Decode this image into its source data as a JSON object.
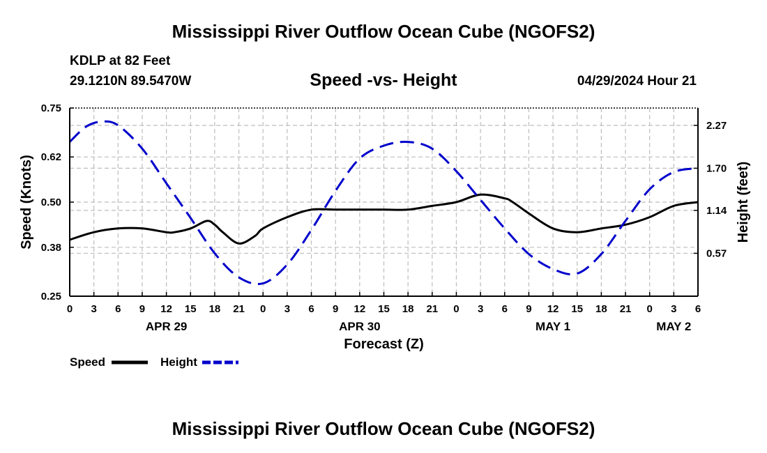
{
  "page": {
    "title": "Mississippi River Outflow Ocean Cube (NGOFS2)",
    "station": "KDLP at 82 Feet",
    "coords": "29.1210N  89.5470W",
    "subtitle": "Speed -vs- Height",
    "date": "04/29/2024 Hour 21",
    "footer_title": "Mississippi River Outflow Ocean Cube (NGOFS2)"
  },
  "chart_data": {
    "type": "line",
    "title": "Speed -vs- Height",
    "xlabel": "Forecast (Z)",
    "ylabel": "Speed (Knots)",
    "y2label": "Height (feet)",
    "xlim": [
      0,
      78
    ],
    "ylim": [
      0.25,
      0.75
    ],
    "y2lim": [
      0,
      2.5
    ],
    "x_ticks": [
      0,
      3,
      6,
      9,
      12,
      15,
      18,
      21,
      24,
      27,
      30,
      33,
      36,
      39,
      42,
      45,
      48,
      51,
      54,
      57,
      60,
      63,
      66,
      69,
      72,
      75,
      78
    ],
    "x_tick_labels": [
      "0",
      "3",
      "6",
      "9",
      "12",
      "15",
      "18",
      "21",
      "0",
      "3",
      "6",
      "9",
      "12",
      "15",
      "18",
      "21",
      "0",
      "3",
      "6",
      "9",
      "12",
      "15",
      "18",
      "21",
      "0",
      "3",
      "6"
    ],
    "date_labels": [
      {
        "label": "APR 29",
        "x": 12
      },
      {
        "label": "APR 30",
        "x": 36
      },
      {
        "label": "MAY 1",
        "x": 60
      },
      {
        "label": "MAY 2",
        "x": 75
      }
    ],
    "y_ticks": [
      0.25,
      0.38,
      0.5,
      0.62,
      0.75
    ],
    "y_tick_labels": [
      "0.25",
      "0.38",
      "0.50",
      "0.62",
      "0.75"
    ],
    "y2_ticks": [
      0.57,
      1.14,
      1.7,
      2.27
    ],
    "y2_tick_labels": [
      "0.57",
      "1.14",
      "1.70",
      "2.27"
    ],
    "grid": true,
    "legend": "bottom-left",
    "series": [
      {
        "name": "Speed",
        "axis": "left",
        "color": "#000000",
        "style": "solid",
        "x": [
          0,
          3,
          6,
          9,
          12,
          13,
          15,
          17,
          18,
          19,
          21,
          23,
          24,
          27,
          30,
          33,
          36,
          39,
          42,
          45,
          48,
          51,
          54,
          55,
          57,
          60,
          63,
          66,
          69,
          72,
          75,
          78
        ],
        "values": [
          0.4,
          0.42,
          0.43,
          0.43,
          0.42,
          0.42,
          0.43,
          0.45,
          0.44,
          0.42,
          0.39,
          0.41,
          0.43,
          0.46,
          0.48,
          0.48,
          0.48,
          0.48,
          0.48,
          0.49,
          0.5,
          0.52,
          0.51,
          0.5,
          0.47,
          0.43,
          0.42,
          0.43,
          0.44,
          0.46,
          0.49,
          0.5
        ]
      },
      {
        "name": "Height",
        "axis": "right",
        "color": "#0000cc",
        "style": "dashed",
        "x": [
          0,
          2,
          4,
          6,
          9,
          12,
          15,
          18,
          21,
          24,
          27,
          30,
          33,
          36,
          39,
          42,
          45,
          48,
          51,
          54,
          57,
          60,
          63,
          66,
          69,
          72,
          75,
          78
        ],
        "values": [
          2.05,
          2.25,
          2.32,
          2.27,
          1.96,
          1.5,
          1.04,
          0.57,
          0.25,
          0.17,
          0.42,
          0.88,
          1.4,
          1.83,
          2.0,
          2.05,
          1.96,
          1.66,
          1.28,
          0.9,
          0.56,
          0.36,
          0.3,
          0.56,
          1.0,
          1.42,
          1.65,
          1.7
        ]
      }
    ]
  }
}
